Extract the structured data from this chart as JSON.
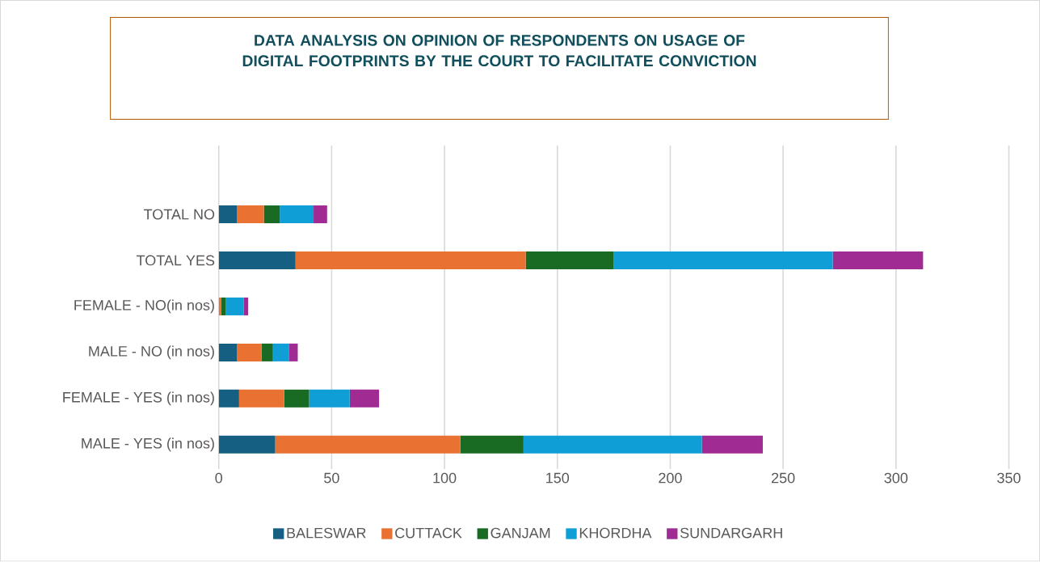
{
  "chart_data": {
    "type": "bar",
    "orientation": "horizontal",
    "stacked": true,
    "title": "DATA ANALYSIS ON OPINION OF RESPONDENTS ON USAGE OF DIGITAL FOOTPRINTS BY THE COURT TO FACILITATE CONVICTION",
    "categories": [
      "TOTAL NO",
      "TOTAL YES",
      "FEMALE - NO(in nos)",
      "MALE - NO (in nos)",
      "FEMALE - YES (in nos)",
      "MALE - YES (in nos)"
    ],
    "series": [
      {
        "name": "BALESWAR",
        "color": "#156082",
        "values": [
          8,
          34,
          0,
          8,
          9,
          25
        ]
      },
      {
        "name": "CUTTACK",
        "color": "#e97132",
        "values": [
          12,
          102,
          1,
          11,
          20,
          82
        ]
      },
      {
        "name": "GANJAM",
        "color": "#196b24",
        "values": [
          7,
          39,
          2,
          5,
          11,
          28
        ]
      },
      {
        "name": "KHORDHA",
        "color": "#0f9ed5",
        "values": [
          15,
          97,
          8,
          7,
          18,
          79
        ]
      },
      {
        "name": "SUNDARGARH",
        "color": "#a02b93",
        "values": [
          6,
          40,
          2,
          4,
          13,
          27
        ]
      }
    ],
    "xlim": [
      0,
      350
    ],
    "xticks": [
      0,
      50,
      100,
      150,
      200,
      250,
      300,
      350
    ],
    "grid": "x",
    "legend": "bottom"
  }
}
